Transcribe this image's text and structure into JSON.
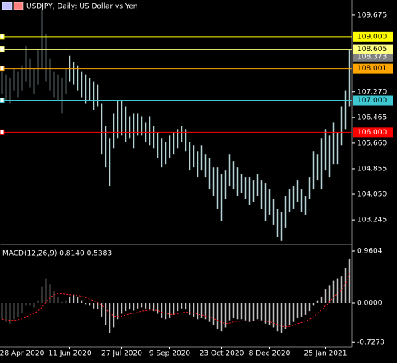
{
  "chart_data": [
    {
      "type": "ohlc",
      "title": "USDJPY, Daily:  US Dollar vs Yen",
      "color": "#b4d2d6",
      "categories": [
        null,
        null,
        null,
        null,
        null,
        "28 Apr 2020",
        null,
        null,
        null,
        null,
        null,
        null,
        null,
        null,
        null,
        null,
        null,
        "11 Jun 2020",
        null,
        null,
        null,
        null,
        null,
        null,
        null,
        null,
        null,
        null,
        null,
        null,
        "27 Jul 2020",
        null,
        null,
        null,
        null,
        null,
        null,
        null,
        null,
        null,
        null,
        null,
        "9 Sep 2020",
        null,
        null,
        null,
        null,
        null,
        null,
        null,
        null,
        null,
        null,
        null,
        null,
        "23 Oct 2020",
        null,
        null,
        null,
        null,
        null,
        null,
        null,
        null,
        null,
        null,
        null,
        "8 Dec 2020",
        null,
        null,
        null,
        null,
        null,
        null,
        null,
        null,
        null,
        null,
        null,
        null,
        null,
        "25 Jan 2021",
        null,
        null,
        null,
        null,
        null,
        null
      ],
      "high": [
        107.9,
        107.8,
        107.7,
        108.0,
        107.9,
        108.1,
        108.7,
        108.3,
        108.0,
        108.6,
        109.85,
        109.1,
        108.3,
        107.9,
        107.8,
        107.7,
        108.0,
        108.4,
        108.2,
        108.1,
        107.9,
        107.8,
        107.7,
        107.6,
        107.5,
        106.9,
        106.2,
        105.8,
        106.6,
        107.0,
        107.0,
        106.8,
        106.5,
        106.6,
        106.6,
        106.5,
        106.3,
        106.5,
        106.2,
        106.0,
        105.8,
        105.7,
        105.9,
        106.0,
        106.1,
        106.2,
        106.1,
        105.7,
        105.6,
        105.4,
        105.6,
        105.3,
        105.2,
        104.9,
        104.9,
        104.7,
        104.8,
        105.3,
        105.1,
        104.9,
        104.7,
        104.6,
        104.6,
        104.5,
        104.7,
        104.5,
        104.4,
        104.2,
        103.9,
        103.6,
        103.5,
        104.0,
        104.2,
        104.3,
        104.5,
        104.2,
        104.0,
        104.6,
        105.4,
        105.3,
        105.8,
        106.1,
        105.9,
        106.3,
        106.0,
        106.8,
        107.3,
        108.6
      ],
      "low": [
        107.2,
        107.0,
        106.9,
        107.3,
        107.1,
        107.3,
        107.6,
        107.4,
        107.2,
        107.5,
        108.0,
        107.6,
        107.3,
        107.1,
        107.0,
        106.6,
        107.2,
        107.6,
        107.5,
        107.3,
        107.1,
        106.9,
        107.0,
        106.7,
        106.8,
        105.3,
        104.9,
        104.3,
        105.5,
        105.8,
        105.9,
        105.7,
        105.8,
        105.5,
        105.9,
        105.9,
        105.7,
        105.6,
        105.5,
        105.2,
        104.9,
        105.0,
        105.2,
        105.3,
        105.5,
        105.7,
        105.4,
        104.8,
        104.9,
        104.6,
        104.8,
        104.6,
        104.2,
        104.0,
        103.6,
        103.2,
        103.9,
        104.3,
        104.2,
        104.0,
        104.1,
        103.9,
        103.7,
        103.8,
        104.0,
        103.6,
        103.2,
        103.4,
        103.1,
        102.7,
        102.6,
        103.0,
        103.5,
        103.6,
        103.8,
        103.5,
        103.4,
        103.9,
        104.2,
        104.5,
        104.2,
        104.8,
        104.6,
        105.0,
        105.0,
        105.6,
        106.1,
        106.8
      ],
      "ylim": [
        102.52,
        110.1
      ],
      "yticks": [
        {
          "value": 109.675,
          "label": "109.675"
        },
        {
          "value": 107.27,
          "label": "107.270"
        },
        106.465,
        {
          "value": 105.66,
          "label": "105.660"
        },
        104.855,
        {
          "value": 104.05,
          "label": "104.050"
        },
        103.245
      ],
      "last_price": {
        "value": 108.373,
        "label": "108.373"
      },
      "levels": [
        {
          "value": 109,
          "label": "109.000",
          "color": "#ffff00"
        },
        {
          "value": 108.605,
          "label": "108.605",
          "color": "#ffff80"
        },
        {
          "value": 108.001,
          "label": "108.001",
          "color": "#ffa500"
        },
        {
          "value": 107,
          "label": "107.000",
          "color": "#3fc8d2"
        },
        {
          "value": 106,
          "label": "106.000",
          "color": "#ff0000"
        }
      ]
    },
    {
      "type": "macd",
      "title": "MACD(12,26,9) 0.8140 0.5383",
      "series": [
        {
          "color": "#c0c0c0",
          "values": [
            -0.3,
            -0.35,
            -0.38,
            -0.3,
            -0.25,
            -0.18,
            -0.05,
            -0.05,
            -0.08,
            0.05,
            0.3,
            0.45,
            0.35,
            0.22,
            0.12,
            0.02,
            0.05,
            0.12,
            0.15,
            0.12,
            0.05,
            -0.02,
            -0.05,
            -0.1,
            -0.12,
            -0.25,
            -0.4,
            -0.55,
            -0.45,
            -0.3,
            -0.2,
            -0.15,
            -0.12,
            -0.14,
            -0.1,
            -0.08,
            -0.1,
            -0.12,
            -0.15,
            -0.2,
            -0.28,
            -0.3,
            -0.28,
            -0.22,
            -0.15,
            -0.1,
            -0.12,
            -0.22,
            -0.26,
            -0.3,
            -0.28,
            -0.3,
            -0.35,
            -0.4,
            -0.48,
            -0.52,
            -0.45,
            -0.32,
            -0.28,
            -0.3,
            -0.3,
            -0.32,
            -0.35,
            -0.34,
            -0.3,
            -0.32,
            -0.38,
            -0.4,
            -0.45,
            -0.52,
            -0.55,
            -0.48,
            -0.4,
            -0.35,
            -0.28,
            -0.25,
            -0.22,
            -0.15,
            -0.05,
            0.05,
            0.12,
            0.25,
            0.32,
            0.42,
            0.45,
            0.5,
            0.65,
            0.814
          ]
        },
        {
          "color": "#ff2020",
          "values": [
            -0.3,
            -0.31,
            -0.32,
            -0.32,
            -0.31,
            -0.29,
            -0.26,
            -0.22,
            -0.19,
            -0.15,
            -0.08,
            0.02,
            0.1,
            0.15,
            0.17,
            0.17,
            0.16,
            0.15,
            0.15,
            0.14,
            0.12,
            0.1,
            0.07,
            0.04,
            0.01,
            -0.04,
            -0.11,
            -0.19,
            -0.24,
            -0.25,
            -0.24,
            -0.22,
            -0.2,
            -0.19,
            -0.17,
            -0.15,
            -0.14,
            -0.13,
            -0.13,
            -0.14,
            -0.17,
            -0.19,
            -0.21,
            -0.21,
            -0.2,
            -0.18,
            -0.17,
            -0.18,
            -0.19,
            -0.21,
            -0.22,
            -0.24,
            -0.26,
            -0.29,
            -0.32,
            -0.36,
            -0.38,
            -0.37,
            -0.35,
            -0.34,
            -0.33,
            -0.33,
            -0.33,
            -0.33,
            -0.33,
            -0.33,
            -0.34,
            -0.35,
            -0.37,
            -0.4,
            -0.43,
            -0.44,
            -0.43,
            -0.41,
            -0.38,
            -0.36,
            -0.33,
            -0.3,
            -0.25,
            -0.19,
            -0.13,
            -0.05,
            0.02,
            0.1,
            0.17,
            0.24,
            0.35,
            0.5383
          ]
        }
      ],
      "ylim": [
        -0.783,
        1.034
      ],
      "yticks": [
        0.9604,
        {
          "value": 0,
          "label": "0.0000"
        },
        -0.7273
      ]
    }
  ]
}
